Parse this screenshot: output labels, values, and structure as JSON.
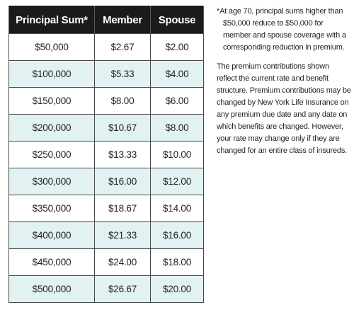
{
  "table": {
    "headers": [
      "Principal Sum*",
      "Member",
      "Spouse"
    ],
    "rows": [
      [
        "$50,000",
        "$2.67",
        "$2.00"
      ],
      [
        "$100,000",
        "$5.33",
        "$4.00"
      ],
      [
        "$150,000",
        "$8.00",
        "$6.00"
      ],
      [
        "$200,000",
        "$10.67",
        "$8.00"
      ],
      [
        "$250,000",
        "$13.33",
        "$10.00"
      ],
      [
        "$300,000",
        "$16.00",
        "$12.00"
      ],
      [
        "$350,000",
        "$18.67",
        "$14.00"
      ],
      [
        "$400,000",
        "$21.33",
        "$16.00"
      ],
      [
        "$450,000",
        "$24.00",
        "$18.00"
      ],
      [
        "$500,000",
        "$26.67",
        "$20.00"
      ]
    ],
    "colors": {
      "header_bg": "#1c1a1a",
      "header_text": "#ffffff",
      "alt_row_bg": "#e2f1f2",
      "row_bg": "#ffffff",
      "border": "#4a4a4a"
    }
  },
  "notes": {
    "footnote": "*At age 70, principal sums higher than $50,000 reduce to $50,000 for member and spouse coverage with a corresponding reduction in premium.",
    "disclaimer": "The premium contributions shown reflect the current rate and benefit structure. Premium contributions may be changed by New York Life Insurance on any premium due date and any date on which benefits are changed. However, your rate may change only if they are changed for an entire class of insureds."
  }
}
